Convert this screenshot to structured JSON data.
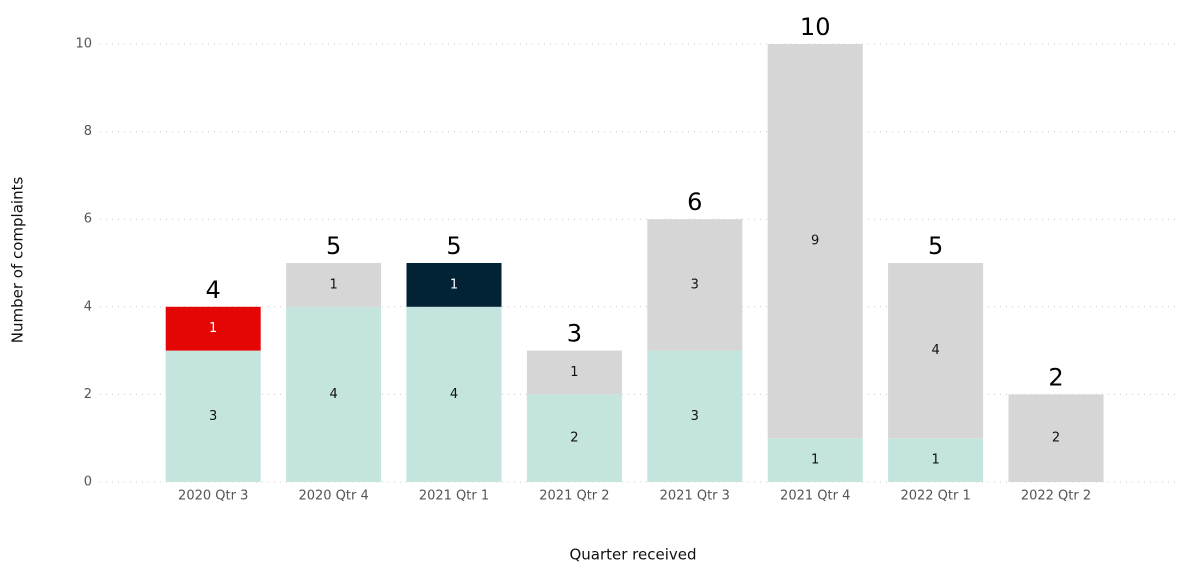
{
  "chart_data": {
    "type": "stacked_bar",
    "x_label": "Quarter received",
    "y_label": "Number of complaints",
    "categories": [
      "2020 Qtr 3",
      "2020 Qtr 4",
      "2021 Qtr 1",
      "2021 Qtr 2",
      "2021 Qtr 3",
      "2021 Qtr 4",
      "2022 Qtr 1",
      "2022 Qtr 2"
    ],
    "series": [
      {
        "color": "#c3e5de",
        "values": [
          3,
          4,
          4,
          2,
          3,
          1,
          1,
          null
        ]
      },
      {
        "color": "#e40505",
        "values": [
          1,
          null,
          null,
          null,
          null,
          null,
          null,
          null
        ]
      },
      {
        "color": "#022235",
        "values": [
          null,
          null,
          1,
          null,
          null,
          null,
          null,
          null
        ]
      },
      {
        "color": "#d6d6d6",
        "values": [
          null,
          1,
          null,
          1,
          3,
          9,
          4,
          2
        ]
      }
    ],
    "totals": [
      4,
      5,
      5,
      3,
      6,
      10,
      5,
      2
    ],
    "ylim": [
      0,
      10
    ],
    "yticks": [
      0,
      2,
      4,
      6,
      8,
      10
    ],
    "grid": true
  }
}
